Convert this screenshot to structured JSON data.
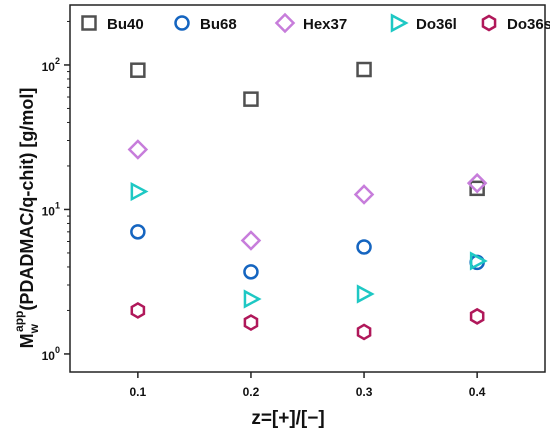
{
  "chart_data": {
    "type": "scatter",
    "title": "",
    "xlabel": "z=[+]/[−]",
    "ylabel": {
      "main": "M",
      "sub": "w",
      "sup": "app",
      "rest": "(PDADMAC/q-chit) [g/mol]"
    },
    "yscale": "log",
    "xlim": [
      0.04,
      0.46
    ],
    "ylim": [
      0.75,
      260
    ],
    "x_ticks": [
      0.1,
      0.2,
      0.3,
      0.4
    ],
    "x_tick_labels": [
      "0.1",
      "0.2",
      "0.3",
      "0.4"
    ],
    "y_ticks": [
      {
        "base": "10",
        "exp": "0",
        "value": 1
      },
      {
        "base": "10",
        "exp": "1",
        "value": 10
      },
      {
        "base": "10",
        "exp": "2",
        "value": 100
      }
    ],
    "grid": false,
    "legend_position": "top",
    "series": [
      {
        "name": "Bu40",
        "marker": "square",
        "color": "#505050",
        "x": [
          0.1,
          0.2,
          0.3,
          0.4
        ],
        "y": [
          92,
          58,
          93,
          14
        ]
      },
      {
        "name": "Bu68",
        "marker": "circle",
        "color": "#1565c0",
        "x": [
          0.1,
          0.2,
          0.3,
          0.4
        ],
        "y": [
          7.0,
          3.7,
          5.5,
          4.3
        ]
      },
      {
        "name": "Hex37",
        "marker": "diamond",
        "color": "#c77ddb",
        "x": [
          0.1,
          0.2,
          0.3,
          0.4
        ],
        "y": [
          26,
          6.1,
          12.7,
          15.2
        ]
      },
      {
        "name": "Do36l",
        "marker": "triangle-right",
        "color": "#1ec8c4",
        "x": [
          0.1,
          0.2,
          0.3,
          0.4
        ],
        "y": [
          13.3,
          2.4,
          2.6,
          4.4
        ]
      },
      {
        "name": "Do36s",
        "marker": "hexagon",
        "color": "#b0185a",
        "x": [
          0.1,
          0.2,
          0.3,
          0.4
        ],
        "y": [
          2.0,
          1.65,
          1.42,
          1.82
        ]
      }
    ]
  }
}
